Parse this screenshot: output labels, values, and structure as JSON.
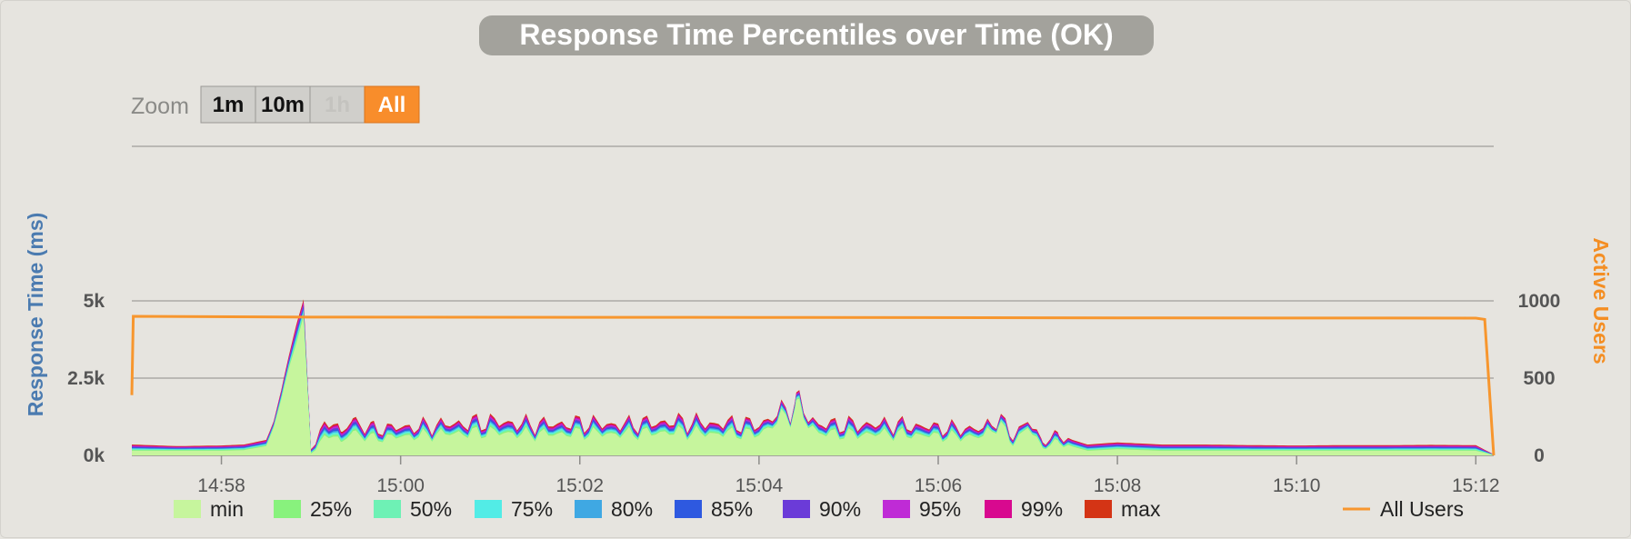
{
  "chart_data": {
    "type": "area",
    "title": "Response Time Percentiles over Time (OK)",
    "zoom": {
      "label": "Zoom",
      "buttons": [
        {
          "label": "1m",
          "state": "enabled"
        },
        {
          "label": "10m",
          "state": "enabled"
        },
        {
          "label": "1h",
          "state": "disabled"
        },
        {
          "label": "All",
          "state": "active"
        }
      ]
    },
    "x_axis": {
      "start": "14:57:00",
      "end": "15:12:12",
      "ticks": [
        "14:58",
        "15:00",
        "15:02",
        "15:04",
        "15:06",
        "15:08",
        "15:10",
        "15:12"
      ]
    },
    "y_axis_left": {
      "label": "Response Time (ms)",
      "range": [
        0,
        10000
      ],
      "ticks": [
        {
          "value": 0,
          "label": "0k"
        },
        {
          "value": 2500,
          "label": "2.5k"
        },
        {
          "value": 5000,
          "label": "5k"
        }
      ]
    },
    "y_axis_right": {
      "label": "Active Users",
      "range": [
        0,
        2000
      ],
      "ticks": [
        {
          "value": 0,
          "label": "0"
        },
        {
          "value": 500,
          "label": "500"
        },
        {
          "value": 1000,
          "label": "1000"
        }
      ]
    },
    "grid": true,
    "legend_placement": "bottom",
    "series": [
      {
        "name": "min",
        "color": "#c6f59d"
      },
      {
        "name": "25%",
        "color": "#88f27d"
      },
      {
        "name": "50%",
        "color": "#6ef1b5"
      },
      {
        "name": "75%",
        "color": "#52ece6"
      },
      {
        "name": "80%",
        "color": "#3fa8e3"
      },
      {
        "name": "85%",
        "color": "#2e59e0"
      },
      {
        "name": "90%",
        "color": "#6b3bd8"
      },
      {
        "name": "95%",
        "color": "#bf2bd6"
      },
      {
        "name": "99%",
        "color": "#d8098f"
      },
      {
        "name": "max",
        "color": "#d43415"
      }
    ],
    "response_time_min_ms": [
      [
        "14:57:00",
        150
      ],
      [
        "14:57:30",
        150
      ],
      [
        "14:58:00",
        150
      ],
      [
        "14:58:15",
        170
      ],
      [
        "14:58:30",
        300
      ],
      [
        "14:58:35",
        900
      ],
      [
        "14:58:40",
        1800
      ],
      [
        "14:58:45",
        2800
      ],
      [
        "14:58:50",
        3600
      ],
      [
        "14:58:55",
        4500
      ],
      [
        "14:59:00",
        60
      ],
      [
        "14:59:06",
        350
      ],
      [
        "14:59:12",
        800
      ],
      [
        "14:59:20",
        400
      ],
      [
        "14:59:28",
        750
      ],
      [
        "14:59:40",
        550
      ],
      [
        "15:00:00",
        600
      ],
      [
        "15:00:30",
        700
      ],
      [
        "15:01:00",
        750
      ],
      [
        "15:01:30",
        680
      ],
      [
        "15:02:00",
        720
      ],
      [
        "15:02:30",
        700
      ],
      [
        "15:03:00",
        760
      ],
      [
        "15:03:30",
        720
      ],
      [
        "15:04:00",
        700
      ],
      [
        "15:04:25",
        1500
      ],
      [
        "15:04:40",
        720
      ],
      [
        "15:05:00",
        680
      ],
      [
        "15:05:30",
        700
      ],
      [
        "15:06:00",
        620
      ],
      [
        "15:06:30",
        600
      ],
      [
        "15:06:40",
        1050
      ],
      [
        "15:06:50",
        400
      ],
      [
        "15:07:00",
        900
      ],
      [
        "15:07:10",
        250
      ],
      [
        "15:07:20",
        420
      ],
      [
        "15:07:40",
        150
      ],
      [
        "15:08:00",
        200
      ],
      [
        "15:08:30",
        150
      ],
      [
        "15:09:00",
        150
      ],
      [
        "15:09:30",
        150
      ],
      [
        "15:10:00",
        150
      ],
      [
        "15:10:30",
        150
      ],
      [
        "15:11:00",
        150
      ],
      [
        "15:11:30",
        150
      ],
      [
        "15:12:00",
        150
      ],
      [
        "15:12:12",
        10
      ]
    ],
    "response_time_max_ms": [
      [
        "14:57:00",
        350
      ],
      [
        "14:57:30",
        300
      ],
      [
        "14:58:00",
        320
      ],
      [
        "14:58:15",
        350
      ],
      [
        "14:58:30",
        500
      ],
      [
        "14:58:35",
        1100
      ],
      [
        "14:58:40",
        2100
      ],
      [
        "14:58:45",
        3200
      ],
      [
        "14:58:50",
        4200
      ],
      [
        "14:58:55",
        5050
      ],
      [
        "14:59:00",
        200
      ],
      [
        "14:59:06",
        650
      ],
      [
        "14:59:12",
        1300
      ],
      [
        "14:59:20",
        700
      ],
      [
        "14:59:28",
        1150
      ],
      [
        "14:59:40",
        850
      ],
      [
        "15:00:00",
        900
      ],
      [
        "15:00:30",
        1000
      ],
      [
        "15:01:00",
        1100
      ],
      [
        "15:01:30",
        1000
      ],
      [
        "15:02:00",
        1050
      ],
      [
        "15:02:30",
        1000
      ],
      [
        "15:03:00",
        1100
      ],
      [
        "15:03:30",
        1050
      ],
      [
        "15:04:00",
        1000
      ],
      [
        "15:04:25",
        1700
      ],
      [
        "15:04:40",
        1000
      ],
      [
        "15:05:00",
        1000
      ],
      [
        "15:05:30",
        1000
      ],
      [
        "15:06:00",
        900
      ],
      [
        "15:06:30",
        850
      ],
      [
        "15:06:40",
        1250
      ],
      [
        "15:06:50",
        650
      ],
      [
        "15:07:00",
        1100
      ],
      [
        "15:07:10",
        450
      ],
      [
        "15:07:20",
        650
      ],
      [
        "15:07:40",
        350
      ],
      [
        "15:08:00",
        420
      ],
      [
        "15:08:30",
        350
      ],
      [
        "15:09:00",
        350
      ],
      [
        "15:09:30",
        330
      ],
      [
        "15:10:00",
        320
      ],
      [
        "15:10:30",
        330
      ],
      [
        "15:11:00",
        330
      ],
      [
        "15:11:30",
        340
      ],
      [
        "15:12:00",
        330
      ],
      [
        "15:12:12",
        30
      ]
    ],
    "active_users": {
      "name": "All Users",
      "color": "#f7962e",
      "points": [
        [
          "14:57:00",
          390
        ],
        [
          "14:57:01",
          900
        ],
        [
          "14:59:00",
          895
        ],
        [
          "15:04:00",
          893
        ],
        [
          "15:08:00",
          890
        ],
        [
          "15:12:00",
          888
        ],
        [
          "15:12:06",
          880
        ],
        [
          "15:12:12",
          0
        ]
      ]
    }
  }
}
